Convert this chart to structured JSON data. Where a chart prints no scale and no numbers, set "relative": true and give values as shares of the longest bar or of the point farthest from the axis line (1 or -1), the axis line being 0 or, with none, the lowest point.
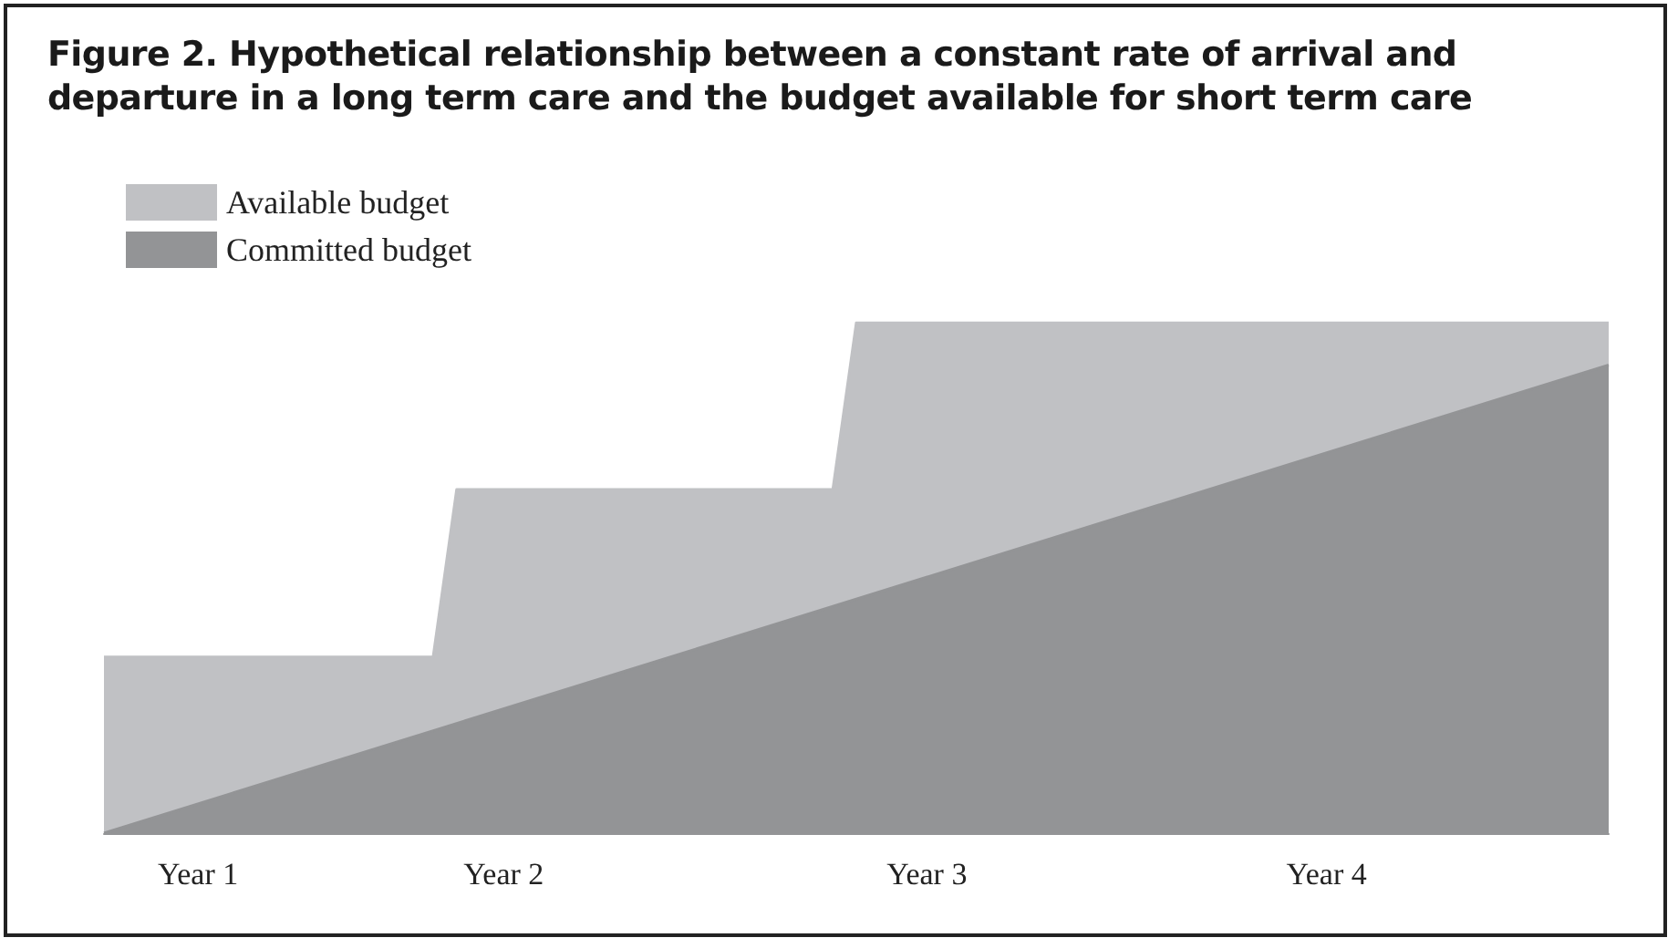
{
  "chart_data": {
    "type": "area",
    "title": "Figure 2. Hypothetical relationship between a constant rate of arrival and departure in a long term care and the budget available for short term care",
    "relative": true,
    "categories": [
      null,
      null,
      null,
      null,
      "Year 1",
      null,
      null,
      null,
      null,
      null,
      null,
      null,
      null,
      null,
      null,
      null,
      null,
      "Year 2",
      null,
      null,
      null,
      null,
      null,
      null,
      null,
      null,
      null,
      null,
      null,
      null,
      null,
      null,
      null,
      null,
      null,
      "Year 3",
      null,
      null,
      null,
      null,
      null,
      null,
      null,
      null,
      null,
      null,
      null,
      null,
      null,
      null,
      null,
      null,
      "Year 4",
      null,
      null,
      null,
      null,
      null,
      null,
      null,
      null,
      null,
      null,
      null,
      null
    ],
    "series": [
      {
        "name": "Available budget",
        "color": "#c0c1c4",
        "values": [
          0.345,
          0.345,
          0.345,
          0.345,
          0.345,
          0.345,
          0.345,
          0.345,
          0.345,
          0.345,
          0.345,
          0.345,
          0.345,
          0.345,
          0.345,
          0.673,
          0.673,
          0.673,
          0.673,
          0.673,
          0.673,
          0.673,
          0.673,
          0.673,
          0.673,
          0.673,
          0.673,
          0.673,
          0.673,
          0.673,
          0.673,
          0.673,
          1,
          1,
          1,
          1,
          1,
          1,
          1,
          1,
          1,
          1,
          1,
          1,
          1,
          1,
          1,
          1,
          1,
          1,
          1,
          1,
          1,
          1,
          1,
          1,
          1,
          1,
          1,
          1,
          1,
          1,
          1,
          1,
          1
        ]
      },
      {
        "name": "Committed budget",
        "color": "#939496",
        "values": [
          0,
          null,
          null,
          null,
          null,
          null,
          null,
          null,
          null,
          null,
          null,
          null,
          null,
          null,
          null,
          null,
          null,
          null,
          null,
          null,
          null,
          null,
          null,
          null,
          null,
          null,
          null,
          null,
          null,
          null,
          null,
          null,
          null,
          null,
          null,
          null,
          null,
          null,
          null,
          null,
          null,
          null,
          null,
          null,
          null,
          null,
          null,
          null,
          null,
          null,
          null,
          null,
          null,
          null,
          null,
          null,
          null,
          null,
          null,
          null,
          null,
          null,
          null,
          null,
          0.917
        ]
      }
    ],
    "legend": "top left",
    "grid": false
  }
}
